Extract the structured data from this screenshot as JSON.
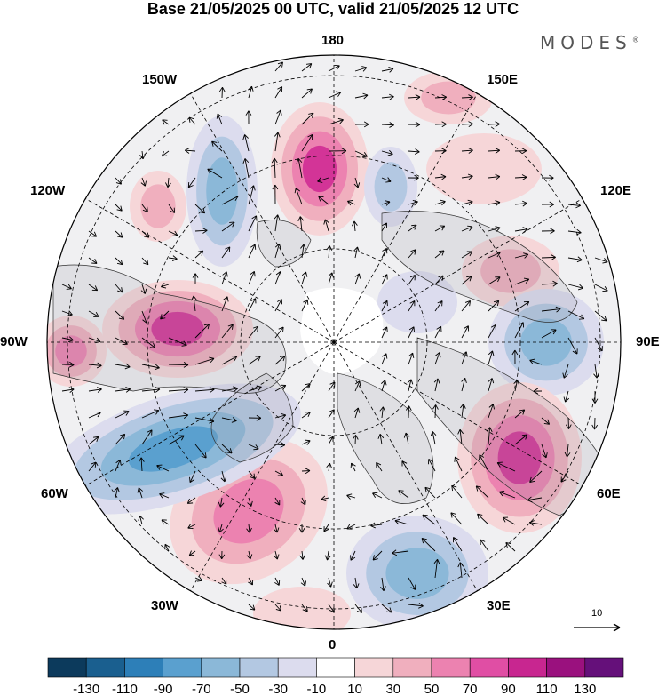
{
  "title": "Base 21/05/2025 00 UTC, valid 21/05/2025 12 UTC",
  "brand": "MODES",
  "brand_mark": "®",
  "longitudes": {
    "top": "180",
    "bottom": "0",
    "left": "90W",
    "right": "90E",
    "upper_left_1": "150W",
    "upper_left_2": "120W",
    "upper_right_1": "150E",
    "upper_right_2": "120E",
    "lower_left_1": "60W",
    "lower_left_2": "30W",
    "lower_right_1": "60E",
    "lower_right_2": "30E"
  },
  "reference_vector": {
    "label": "10"
  },
  "colorbar": {
    "colors": [
      "#0c3a5c",
      "#1a5f8f",
      "#2d7fb8",
      "#5aa0cf",
      "#8bb8d8",
      "#b3c8e2",
      "#dcdcee",
      "#ffffff",
      "#f6d6d8",
      "#f0afbe",
      "#ec82b0",
      "#e04ea4",
      "#c82690",
      "#9a117e",
      "#65107a"
    ],
    "tick_labels": [
      "-130",
      "-110",
      "-90",
      "-70",
      "-50",
      "-30",
      "-10",
      "10",
      "30",
      "50",
      "70",
      "90",
      "110",
      "130"
    ]
  },
  "anomaly_colors": {
    "strong_pos": "#d33497",
    "pos": "#ec82b0",
    "weak_pos": "#f0afbe",
    "faint_pos": "#f6d6d8",
    "faint_neg": "#dcdcee",
    "weak_neg": "#b3c8e2",
    "neg": "#8bb8d8",
    "strong_neg": "#5aa0cf"
  }
}
